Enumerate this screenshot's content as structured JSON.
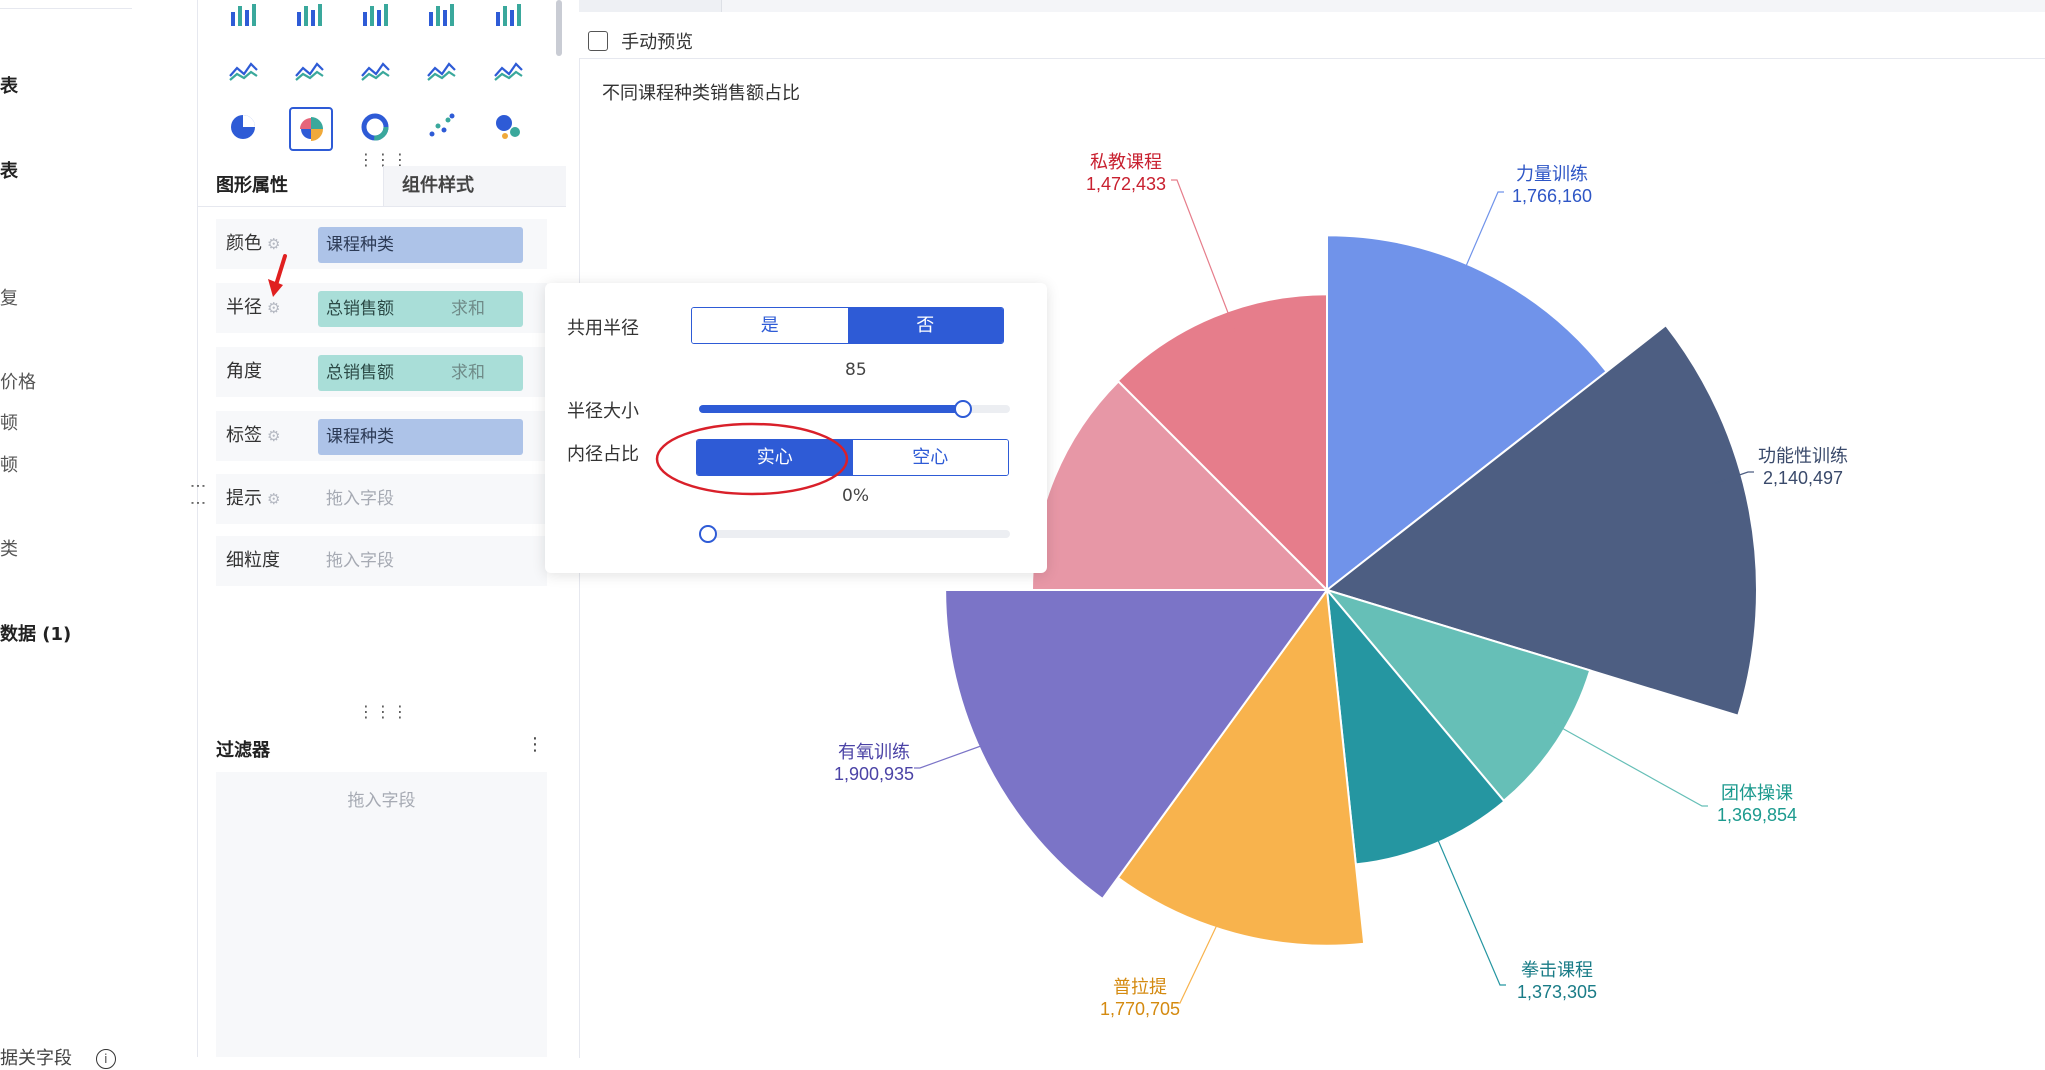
{
  "left_panel": {
    "fragments": [
      {
        "text": "表",
        "bold": true
      },
      {
        "text": "表",
        "bold": true
      },
      {
        "text": "复",
        "bold": false
      },
      {
        "text": "价格",
        "bold": false
      },
      {
        "text": "顿",
        "bold": false
      },
      {
        "text": "顿",
        "bold": false
      },
      {
        "text": "类",
        "bold": false
      },
      {
        "text": "数据 (1)",
        "bold": true
      }
    ],
    "bottom_text": "据关字段"
  },
  "chart_icons": [
    "stacked-column-icon",
    "grouped-column-icon",
    "percent-column-icon",
    "bar-list-icon",
    "waterfall-icon",
    "stream-icon",
    "radar-cross-icon",
    "radar-icon",
    "area-line-icon",
    "gauge-icon",
    "pie-icon",
    "rose-pie-icon",
    "donut-icon",
    "scatter-icon",
    "bubble-icon"
  ],
  "selected_chart_icon": "rose-pie-icon",
  "tabs": {
    "graph_props": "图形属性",
    "component_style": "组件样式"
  },
  "properties": [
    {
      "label": "颜色",
      "gear": true,
      "pill": "课程种类",
      "agg": "",
      "color": "blue",
      "placeholder": ""
    },
    {
      "label": "半径",
      "gear": true,
      "pill": "总销售额",
      "agg": "求和",
      "color": "teal",
      "placeholder": ""
    },
    {
      "label": "角度",
      "gear": false,
      "pill": "总销售额",
      "agg": "求和",
      "color": "teal",
      "placeholder": ""
    },
    {
      "label": "标签",
      "gear": true,
      "pill": "课程种类",
      "agg": "",
      "color": "blue",
      "placeholder": ""
    },
    {
      "label": "提示",
      "gear": true,
      "pill": "",
      "agg": "",
      "color": "",
      "placeholder": "拖入字段"
    },
    {
      "label": "细粒度",
      "gear": false,
      "pill": "",
      "agg": "",
      "color": "",
      "placeholder": "拖入字段"
    }
  ],
  "filter": {
    "title": "过滤器",
    "menu": "⋮",
    "placeholder": "拖入字段"
  },
  "canvas": {
    "manual_preview": "手动预览"
  },
  "popover": {
    "shared_radius_label": "共用半径",
    "shared_yes": "是",
    "shared_no": "否",
    "shared_selected": "否",
    "radius_value": "85",
    "radius_size_label": "半径大小",
    "radius_size_fraction": 0.85,
    "inner_ratio_label": "内径占比",
    "solid": "实心",
    "hollow": "空心",
    "inner_selected": "实心",
    "inner_value": "0%",
    "inner_fraction": 0
  },
  "chart_data": {
    "type": "pie",
    "subtype": "rose",
    "title": "不同课程种类销售额占比",
    "labels_show_value": true,
    "series": [
      {
        "name": "力量训练",
        "value": 1766160,
        "label": "1,766,160",
        "color": "#7093ea",
        "label_color": "#2e56c6"
      },
      {
        "name": "功能性训练",
        "value": 2140497,
        "label": "2,140,497",
        "color": "#4d5e82",
        "label_color": "#3a4a6b"
      },
      {
        "name": "团体操课",
        "value": 1369854,
        "label": "1,369,854",
        "color": "#66bfb7",
        "label_color": "#1c9a8e"
      },
      {
        "name": "拳击课程",
        "value": 1373305,
        "label": "1,373,305",
        "color": "#2596a1",
        "label_color": "#1a7c87"
      },
      {
        "name": "普拉提",
        "value": 1770705,
        "label": "1,770,705",
        "color": "#f8b34d",
        "label_color": "#d48a10"
      },
      {
        "name": "有氧训练",
        "value": 1900935,
        "label": "1,900,935",
        "color": "#7b74c7",
        "label_color": "#4b43a6"
      },
      {
        "name": "",
        "value": 1600000,
        "label": "",
        "color": "#e797a6",
        "label_color": "#c23a52"
      },
      {
        "name": "私教课程",
        "value": 1472433,
        "label": "1,472,433",
        "color": "#e67d8b",
        "label_color": "#c8202f"
      }
    ]
  }
}
